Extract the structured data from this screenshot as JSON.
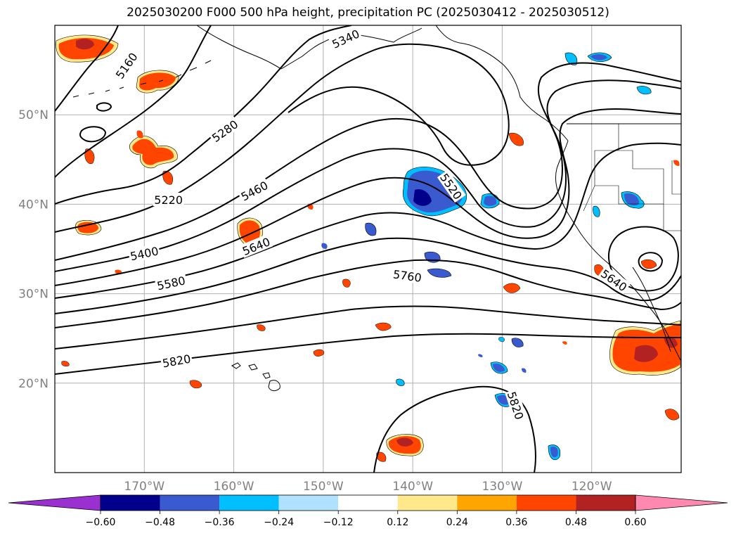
{
  "title": "2025030200 F000 500 hPa height, precipitation PC (2025030412 - 2025030512)",
  "map": {
    "lon_labels": [
      {
        "lon": -170,
        "text": "170°W"
      },
      {
        "lon": -160,
        "text": "160°W"
      },
      {
        "lon": -150,
        "text": "150°W"
      },
      {
        "lon": -140,
        "text": "140°W"
      },
      {
        "lon": -130,
        "text": "130°W"
      },
      {
        "lon": -120,
        "text": "120°W"
      }
    ],
    "lat_labels": [
      {
        "lat": 50,
        "text": "50°N"
      },
      {
        "lat": 40,
        "text": "40°N"
      },
      {
        "lat": 30,
        "text": "30°N"
      },
      {
        "lat": 20,
        "text": "20°N"
      }
    ],
    "contour_labels": [
      {
        "text": "5160",
        "lon": -172,
        "lat": 55.5,
        "angle": -55
      },
      {
        "text": "5280",
        "lon": -161,
        "lat": 48.2,
        "angle": -35
      },
      {
        "text": "5220",
        "lon": -167.3,
        "lat": 40.5,
        "angle": 0
      },
      {
        "text": "5460",
        "lon": -157.7,
        "lat": 41.5,
        "angle": -28
      },
      {
        "text": "5400",
        "lon": -170,
        "lat": 34.5,
        "angle": -12
      },
      {
        "text": "5640",
        "lon": -157.5,
        "lat": 35.3,
        "angle": -22
      },
      {
        "text": "5580",
        "lon": -167,
        "lat": 31.2,
        "angle": -12
      },
      {
        "text": "5760",
        "lon": -140.6,
        "lat": 32,
        "angle": 8
      },
      {
        "text": "5820",
        "lon": -166.4,
        "lat": 22.5,
        "angle": -10
      },
      {
        "text": "5520",
        "lon": -135.7,
        "lat": 42,
        "angle": 55
      },
      {
        "text": "5820",
        "lon": -128.5,
        "lat": 17.5,
        "angle": 72
      },
      {
        "text": "5640",
        "lon": -117.5,
        "lat": 31.5,
        "angle": 35
      },
      {
        "text": "5340",
        "lon": -147.5,
        "lat": 58.5,
        "angle": -25
      }
    ]
  },
  "colorbar": {
    "labels": [
      "−0.60",
      "−0.48",
      "−0.36",
      "−0.24",
      "−0.12",
      "0.12",
      "0.24",
      "0.36",
      "0.48",
      "0.60"
    ],
    "colors": [
      "#9b30d0",
      "#00008b",
      "#3a5bcf",
      "#00bfff",
      "#b0e2ff",
      "#ffffff",
      "#ffe98a",
      "#ffa500",
      "#ff4500",
      "#b22222",
      "#ff88b0"
    ]
  },
  "colors": {
    "gridline": "#b0b0b0",
    "contour": "#000000",
    "coastline": "#000000"
  }
}
